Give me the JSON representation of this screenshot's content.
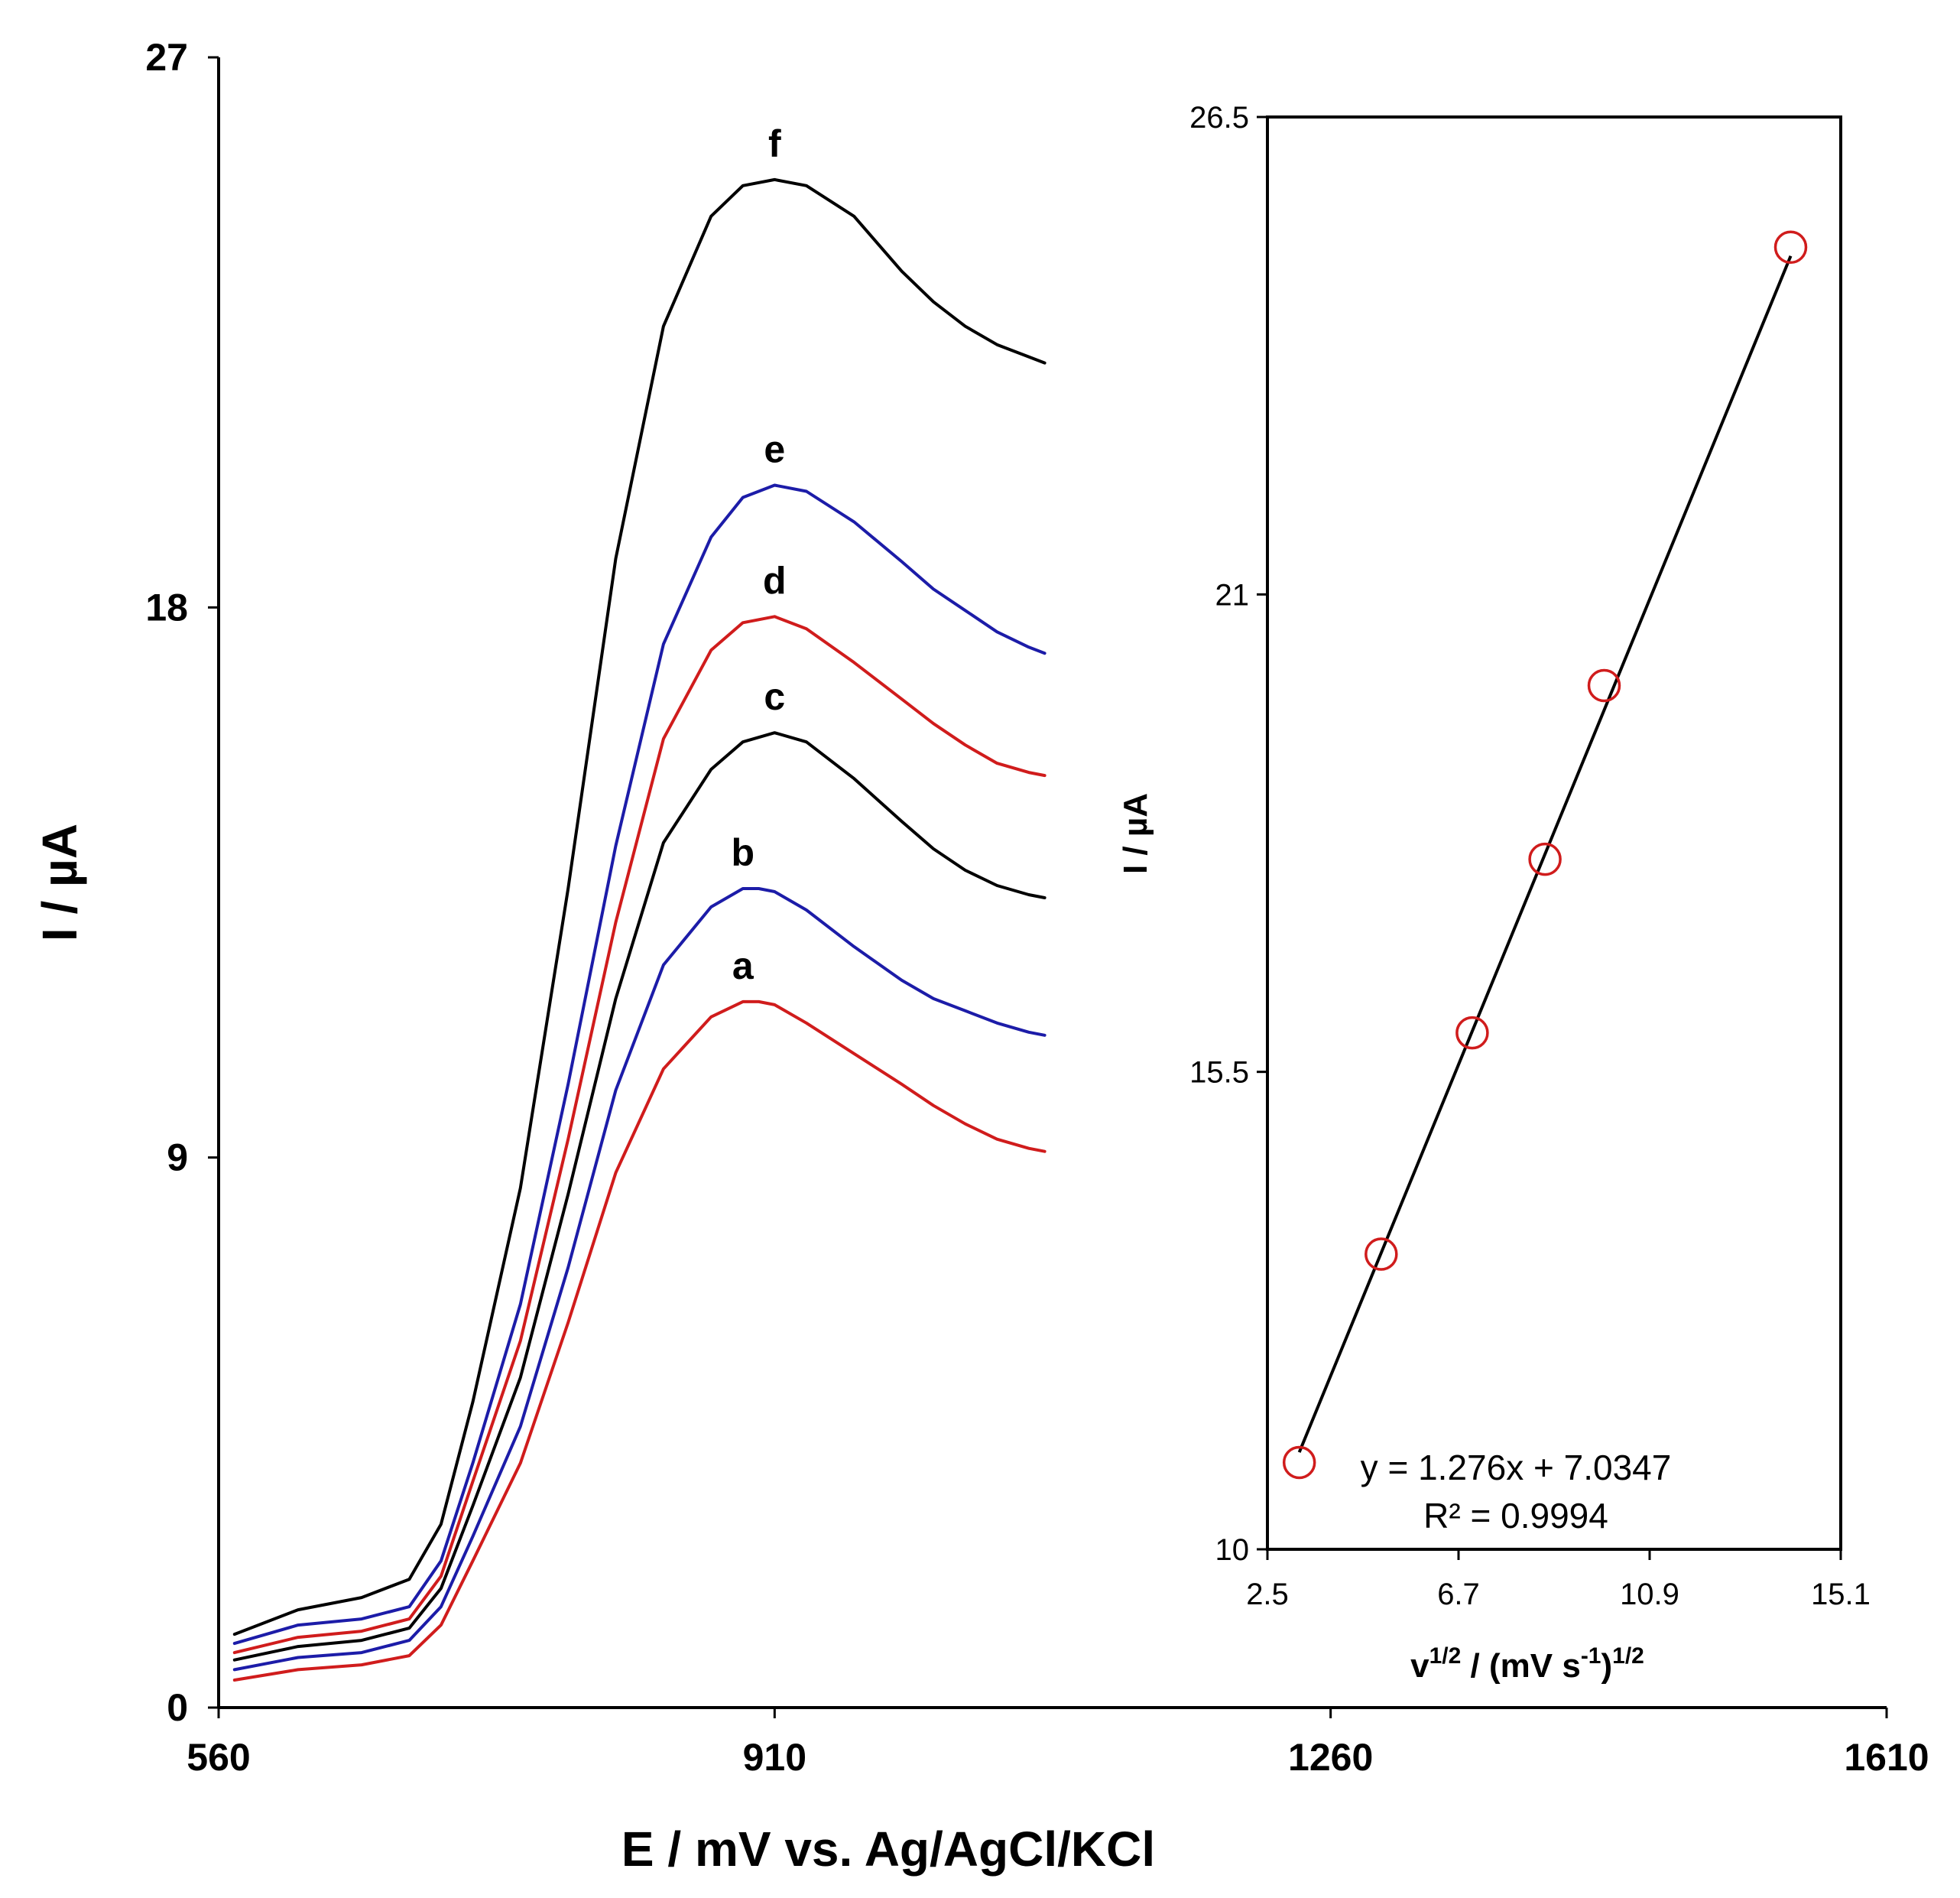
{
  "colors": {
    "red": "#d01c1c",
    "blue": "#1c1ca8",
    "black": "#000000"
  },
  "chart_data": [
    {
      "type": "line",
      "xlabel": "E / mV vs. Ag/AgCl/KCl",
      "ylabel": "I / µA",
      "xlim": [
        560,
        1610
      ],
      "ylim": [
        0,
        27
      ],
      "xticks": [
        "560",
        "910",
        "1260",
        "1610"
      ],
      "yticks": [
        "0",
        "9",
        "18",
        "27"
      ],
      "series": [
        {
          "name": "a",
          "color": "red",
          "x": [
            570,
            610,
            650,
            680,
            700,
            720,
            750,
            780,
            810,
            840,
            870,
            890,
            900,
            910,
            930,
            960,
            990,
            1010,
            1030,
            1050,
            1070,
            1080
          ],
          "y": [
            0.45,
            0.62,
            0.7,
            0.85,
            1.35,
            2.4,
            4.0,
            6.3,
            8.75,
            10.45,
            11.3,
            11.55,
            11.55,
            11.5,
            11.2,
            10.7,
            10.2,
            9.85,
            9.55,
            9.3,
            9.15,
            9.1
          ]
        },
        {
          "name": "b",
          "color": "blue",
          "x": [
            570,
            610,
            650,
            680,
            700,
            720,
            750,
            780,
            810,
            840,
            870,
            890,
            900,
            910,
            930,
            960,
            990,
            1010,
            1030,
            1050,
            1070,
            1080
          ],
          "y": [
            0.62,
            0.82,
            0.9,
            1.1,
            1.65,
            2.8,
            4.6,
            7.2,
            10.1,
            12.15,
            13.1,
            13.4,
            13.4,
            13.35,
            13.05,
            12.45,
            11.9,
            11.6,
            11.4,
            11.2,
            11.05,
            11.0
          ]
        },
        {
          "name": "c",
          "color": "black",
          "x": [
            570,
            610,
            650,
            680,
            700,
            720,
            750,
            780,
            810,
            840,
            870,
            890,
            910,
            930,
            960,
            990,
            1010,
            1030,
            1050,
            1070,
            1080
          ],
          "y": [
            0.78,
            1.0,
            1.1,
            1.3,
            1.95,
            3.3,
            5.4,
            8.4,
            11.6,
            14.15,
            15.35,
            15.8,
            15.95,
            15.8,
            15.2,
            14.5,
            14.05,
            13.7,
            13.45,
            13.3,
            13.25
          ]
        },
        {
          "name": "d",
          "color": "red",
          "x": [
            570,
            610,
            650,
            680,
            700,
            720,
            750,
            780,
            810,
            840,
            870,
            890,
            910,
            930,
            960,
            990,
            1010,
            1030,
            1050,
            1070,
            1080
          ],
          "y": [
            0.9,
            1.15,
            1.25,
            1.45,
            2.15,
            3.7,
            6.0,
            9.3,
            12.85,
            15.85,
            17.3,
            17.75,
            17.85,
            17.65,
            17.1,
            16.5,
            16.1,
            15.75,
            15.45,
            15.3,
            15.25
          ]
        },
        {
          "name": "e",
          "color": "blue",
          "x": [
            570,
            610,
            650,
            680,
            700,
            720,
            750,
            780,
            810,
            840,
            870,
            890,
            910,
            930,
            960,
            990,
            1010,
            1030,
            1050,
            1070,
            1080
          ],
          "y": [
            1.05,
            1.35,
            1.45,
            1.65,
            2.4,
            4.0,
            6.6,
            10.2,
            14.1,
            17.4,
            19.15,
            19.8,
            20.0,
            19.9,
            19.4,
            18.75,
            18.3,
            17.95,
            17.6,
            17.35,
            17.25
          ]
        },
        {
          "name": "f",
          "color": "black",
          "x": [
            570,
            610,
            650,
            680,
            700,
            720,
            750,
            780,
            810,
            840,
            870,
            890,
            910,
            930,
            960,
            990,
            1010,
            1030,
            1050,
            1070,
            1080
          ],
          "y": [
            1.2,
            1.6,
            1.8,
            2.1,
            3.0,
            5.0,
            8.5,
            13.4,
            18.8,
            22.6,
            24.4,
            24.9,
            25.0,
            24.9,
            24.4,
            23.5,
            23.0,
            22.6,
            22.3,
            22.1,
            22.0
          ]
        }
      ]
    },
    {
      "type": "scatter",
      "xlabel": "v",
      "xlabel_sup": "1/2",
      "xlabel_mid": " / (mV  s",
      "xlabel_sup2": "-1",
      "xlabel_end": ")",
      "xlabel_sup3": "1/2",
      "ylabel": "I / µA",
      "xlim": [
        2.5,
        15.1
      ],
      "ylim": [
        10,
        26.5
      ],
      "xticks": [
        "2.5",
        "6.7",
        "10.9",
        "15.1"
      ],
      "yticks": [
        "10",
        "15.5",
        "21",
        "26.5"
      ],
      "x": [
        3.2,
        5.0,
        7.0,
        8.6,
        9.9,
        14.0
      ],
      "y": [
        11.0,
        13.4,
        15.95,
        17.95,
        19.95,
        25.0
      ],
      "fit": {
        "slope": 1.276,
        "intercept": 7.0347
      },
      "equation": "y = 1.276x + 7.0347",
      "r_squared": "R² = 0.9994"
    }
  ]
}
